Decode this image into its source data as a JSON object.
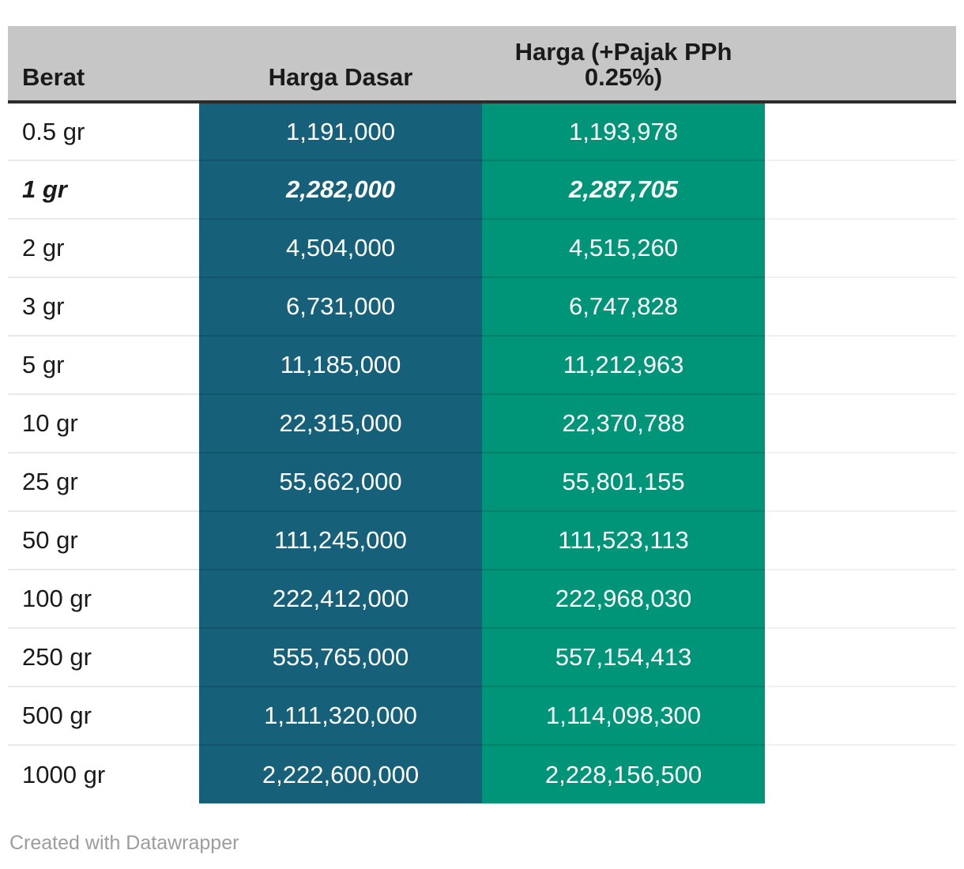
{
  "table": {
    "columns": [
      {
        "label": "Berat"
      },
      {
        "label": "Harga Dasar"
      },
      {
        "label": "Harga (+Pajak PPh 0.25%)",
        "label_lines": [
          "Harga (+Pajak PPh",
          "0.25%)"
        ]
      }
    ],
    "rows": [
      {
        "berat": "0.5 gr",
        "harga_dasar": "1,191,000",
        "harga_pajak": "1,193,978",
        "highlight": false
      },
      {
        "berat": "1 gr",
        "harga_dasar": "2,282,000",
        "harga_pajak": "2,287,705",
        "highlight": true
      },
      {
        "berat": "2 gr",
        "harga_dasar": "4,504,000",
        "harga_pajak": "4,515,260",
        "highlight": false
      },
      {
        "berat": "3 gr",
        "harga_dasar": "6,731,000",
        "harga_pajak": "6,747,828",
        "highlight": false
      },
      {
        "berat": "5 gr",
        "harga_dasar": "11,185,000",
        "harga_pajak": "11,212,963",
        "highlight": false
      },
      {
        "berat": "10 gr",
        "harga_dasar": "22,315,000",
        "harga_pajak": "22,370,788",
        "highlight": false
      },
      {
        "berat": "25 gr",
        "harga_dasar": "55,662,000",
        "harga_pajak": "55,801,155",
        "highlight": false
      },
      {
        "berat": "50 gr",
        "harga_dasar": "111,245,000",
        "harga_pajak": "111,523,113",
        "highlight": false
      },
      {
        "berat": "100 gr",
        "harga_dasar": "222,412,000",
        "harga_pajak": "222,968,030",
        "highlight": false
      },
      {
        "berat": "250 gr",
        "harga_dasar": "555,765,000",
        "harga_pajak": "557,154,413",
        "highlight": false
      },
      {
        "berat": "500 gr",
        "harga_dasar": "1,111,320,000",
        "harga_pajak": "1,114,098,300",
        "highlight": false
      },
      {
        "berat": "1000 gr",
        "harga_dasar": "2,222,600,000",
        "harga_pajak": "2,228,156,500",
        "highlight": false
      }
    ]
  },
  "footer": {
    "credit": "Created with Datawrapper"
  },
  "colors": {
    "header_bg": "#c6c6c6",
    "header_border": "#2b2b2b",
    "harga_dasar_column_bg": "#16607a",
    "harga_pajak_column_bg": "#009578",
    "value_text": "#ffffff",
    "label_text": "#1a1a1a",
    "row_separator": "#e9e9e9",
    "credit_text": "#9d9d9d"
  },
  "chart_data": {
    "type": "table",
    "title": "",
    "columns": [
      "Berat",
      "Harga Dasar",
      "Harga (+Pajak PPh 0.25%)"
    ],
    "categories": [
      "0.5 gr",
      "1 gr",
      "2 gr",
      "3 gr",
      "5 gr",
      "10 gr",
      "25 gr",
      "50 gr",
      "100 gr",
      "250 gr",
      "500 gr",
      "1000 gr"
    ],
    "series": [
      {
        "name": "Harga Dasar",
        "values": [
          1191000,
          2282000,
          4504000,
          6731000,
          11185000,
          22315000,
          55662000,
          111245000,
          222412000,
          555765000,
          1111320000,
          2222600000
        ]
      },
      {
        "name": "Harga (+Pajak PPh 0.25%)",
        "values": [
          1193978,
          2287705,
          4515260,
          6747828,
          11212963,
          22370788,
          55801155,
          111523113,
          222968030,
          557154413,
          1114098300,
          2228156500
        ]
      }
    ],
    "highlighted_row": "1 gr",
    "credit": "Created with Datawrapper"
  }
}
